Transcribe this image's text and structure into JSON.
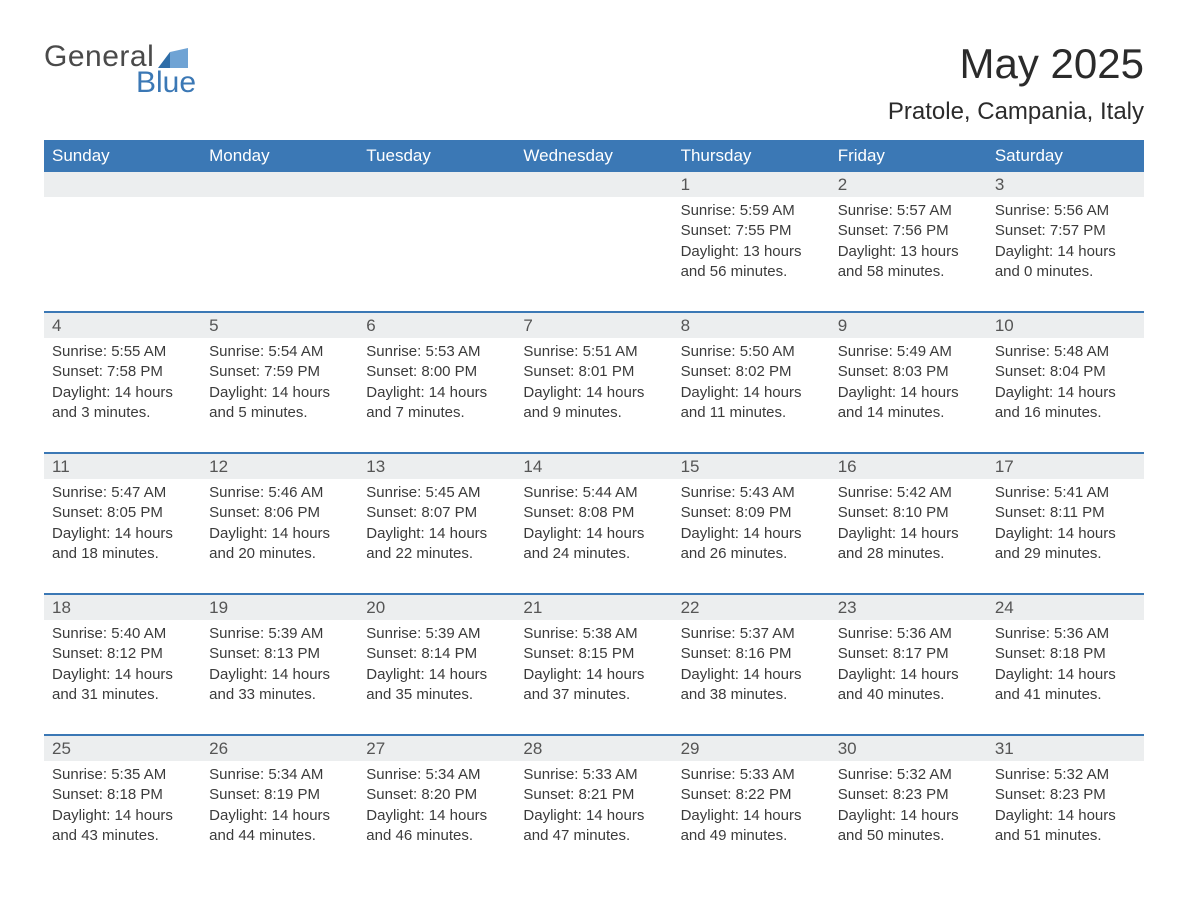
{
  "brand": {
    "line1": "General",
    "line2": "Blue",
    "flag_color1": "#2e6da8",
    "flag_color2": "#6fa3d4"
  },
  "header": {
    "title": "May 2025",
    "location": "Pratole, Campania, Italy"
  },
  "style": {
    "header_bg": "#3b78b5",
    "header_text": "#ffffff",
    "daynum_bg": "#eceeef",
    "daynum_text": "#555555",
    "body_text": "#3b3b3b",
    "rule_color": "#3b78b5",
    "page_bg": "#ffffff",
    "title_fontsize": 42,
    "location_fontsize": 24,
    "weekday_fontsize": 17,
    "cell_fontsize": 15
  },
  "weekdays": [
    "Sunday",
    "Monday",
    "Tuesday",
    "Wednesday",
    "Thursday",
    "Friday",
    "Saturday"
  ],
  "sunrise_label": "Sunrise",
  "sunset_label": "Sunset",
  "daylight_label": "Daylight",
  "weeks": [
    {
      "cells": [
        {
          "day": "",
          "sunrise": "",
          "sunset": "",
          "daylight1": "",
          "daylight2": ""
        },
        {
          "day": "",
          "sunrise": "",
          "sunset": "",
          "daylight1": "",
          "daylight2": ""
        },
        {
          "day": "",
          "sunrise": "",
          "sunset": "",
          "daylight1": "",
          "daylight2": ""
        },
        {
          "day": "",
          "sunrise": "",
          "sunset": "",
          "daylight1": "",
          "daylight2": ""
        },
        {
          "day": "1",
          "sunrise": "Sunrise: 5:59 AM",
          "sunset": "Sunset: 7:55 PM",
          "daylight1": "Daylight: 13 hours",
          "daylight2": "and 56 minutes."
        },
        {
          "day": "2",
          "sunrise": "Sunrise: 5:57 AM",
          "sunset": "Sunset: 7:56 PM",
          "daylight1": "Daylight: 13 hours",
          "daylight2": "and 58 minutes."
        },
        {
          "day": "3",
          "sunrise": "Sunrise: 5:56 AM",
          "sunset": "Sunset: 7:57 PM",
          "daylight1": "Daylight: 14 hours",
          "daylight2": "and 0 minutes."
        }
      ]
    },
    {
      "cells": [
        {
          "day": "4",
          "sunrise": "Sunrise: 5:55 AM",
          "sunset": "Sunset: 7:58 PM",
          "daylight1": "Daylight: 14 hours",
          "daylight2": "and 3 minutes."
        },
        {
          "day": "5",
          "sunrise": "Sunrise: 5:54 AM",
          "sunset": "Sunset: 7:59 PM",
          "daylight1": "Daylight: 14 hours",
          "daylight2": "and 5 minutes."
        },
        {
          "day": "6",
          "sunrise": "Sunrise: 5:53 AM",
          "sunset": "Sunset: 8:00 PM",
          "daylight1": "Daylight: 14 hours",
          "daylight2": "and 7 minutes."
        },
        {
          "day": "7",
          "sunrise": "Sunrise: 5:51 AM",
          "sunset": "Sunset: 8:01 PM",
          "daylight1": "Daylight: 14 hours",
          "daylight2": "and 9 minutes."
        },
        {
          "day": "8",
          "sunrise": "Sunrise: 5:50 AM",
          "sunset": "Sunset: 8:02 PM",
          "daylight1": "Daylight: 14 hours",
          "daylight2": "and 11 minutes."
        },
        {
          "day": "9",
          "sunrise": "Sunrise: 5:49 AM",
          "sunset": "Sunset: 8:03 PM",
          "daylight1": "Daylight: 14 hours",
          "daylight2": "and 14 minutes."
        },
        {
          "day": "10",
          "sunrise": "Sunrise: 5:48 AM",
          "sunset": "Sunset: 8:04 PM",
          "daylight1": "Daylight: 14 hours",
          "daylight2": "and 16 minutes."
        }
      ]
    },
    {
      "cells": [
        {
          "day": "11",
          "sunrise": "Sunrise: 5:47 AM",
          "sunset": "Sunset: 8:05 PM",
          "daylight1": "Daylight: 14 hours",
          "daylight2": "and 18 minutes."
        },
        {
          "day": "12",
          "sunrise": "Sunrise: 5:46 AM",
          "sunset": "Sunset: 8:06 PM",
          "daylight1": "Daylight: 14 hours",
          "daylight2": "and 20 minutes."
        },
        {
          "day": "13",
          "sunrise": "Sunrise: 5:45 AM",
          "sunset": "Sunset: 8:07 PM",
          "daylight1": "Daylight: 14 hours",
          "daylight2": "and 22 minutes."
        },
        {
          "day": "14",
          "sunrise": "Sunrise: 5:44 AM",
          "sunset": "Sunset: 8:08 PM",
          "daylight1": "Daylight: 14 hours",
          "daylight2": "and 24 minutes."
        },
        {
          "day": "15",
          "sunrise": "Sunrise: 5:43 AM",
          "sunset": "Sunset: 8:09 PM",
          "daylight1": "Daylight: 14 hours",
          "daylight2": "and 26 minutes."
        },
        {
          "day": "16",
          "sunrise": "Sunrise: 5:42 AM",
          "sunset": "Sunset: 8:10 PM",
          "daylight1": "Daylight: 14 hours",
          "daylight2": "and 28 minutes."
        },
        {
          "day": "17",
          "sunrise": "Sunrise: 5:41 AM",
          "sunset": "Sunset: 8:11 PM",
          "daylight1": "Daylight: 14 hours",
          "daylight2": "and 29 minutes."
        }
      ]
    },
    {
      "cells": [
        {
          "day": "18",
          "sunrise": "Sunrise: 5:40 AM",
          "sunset": "Sunset: 8:12 PM",
          "daylight1": "Daylight: 14 hours",
          "daylight2": "and 31 minutes."
        },
        {
          "day": "19",
          "sunrise": "Sunrise: 5:39 AM",
          "sunset": "Sunset: 8:13 PM",
          "daylight1": "Daylight: 14 hours",
          "daylight2": "and 33 minutes."
        },
        {
          "day": "20",
          "sunrise": "Sunrise: 5:39 AM",
          "sunset": "Sunset: 8:14 PM",
          "daylight1": "Daylight: 14 hours",
          "daylight2": "and 35 minutes."
        },
        {
          "day": "21",
          "sunrise": "Sunrise: 5:38 AM",
          "sunset": "Sunset: 8:15 PM",
          "daylight1": "Daylight: 14 hours",
          "daylight2": "and 37 minutes."
        },
        {
          "day": "22",
          "sunrise": "Sunrise: 5:37 AM",
          "sunset": "Sunset: 8:16 PM",
          "daylight1": "Daylight: 14 hours",
          "daylight2": "and 38 minutes."
        },
        {
          "day": "23",
          "sunrise": "Sunrise: 5:36 AM",
          "sunset": "Sunset: 8:17 PM",
          "daylight1": "Daylight: 14 hours",
          "daylight2": "and 40 minutes."
        },
        {
          "day": "24",
          "sunrise": "Sunrise: 5:36 AM",
          "sunset": "Sunset: 8:18 PM",
          "daylight1": "Daylight: 14 hours",
          "daylight2": "and 41 minutes."
        }
      ]
    },
    {
      "cells": [
        {
          "day": "25",
          "sunrise": "Sunrise: 5:35 AM",
          "sunset": "Sunset: 8:18 PM",
          "daylight1": "Daylight: 14 hours",
          "daylight2": "and 43 minutes."
        },
        {
          "day": "26",
          "sunrise": "Sunrise: 5:34 AM",
          "sunset": "Sunset: 8:19 PM",
          "daylight1": "Daylight: 14 hours",
          "daylight2": "and 44 minutes."
        },
        {
          "day": "27",
          "sunrise": "Sunrise: 5:34 AM",
          "sunset": "Sunset: 8:20 PM",
          "daylight1": "Daylight: 14 hours",
          "daylight2": "and 46 minutes."
        },
        {
          "day": "28",
          "sunrise": "Sunrise: 5:33 AM",
          "sunset": "Sunset: 8:21 PM",
          "daylight1": "Daylight: 14 hours",
          "daylight2": "and 47 minutes."
        },
        {
          "day": "29",
          "sunrise": "Sunrise: 5:33 AM",
          "sunset": "Sunset: 8:22 PM",
          "daylight1": "Daylight: 14 hours",
          "daylight2": "and 49 minutes."
        },
        {
          "day": "30",
          "sunrise": "Sunrise: 5:32 AM",
          "sunset": "Sunset: 8:23 PM",
          "daylight1": "Daylight: 14 hours",
          "daylight2": "and 50 minutes."
        },
        {
          "day": "31",
          "sunrise": "Sunrise: 5:32 AM",
          "sunset": "Sunset: 8:23 PM",
          "daylight1": "Daylight: 14 hours",
          "daylight2": "and 51 minutes."
        }
      ]
    }
  ]
}
